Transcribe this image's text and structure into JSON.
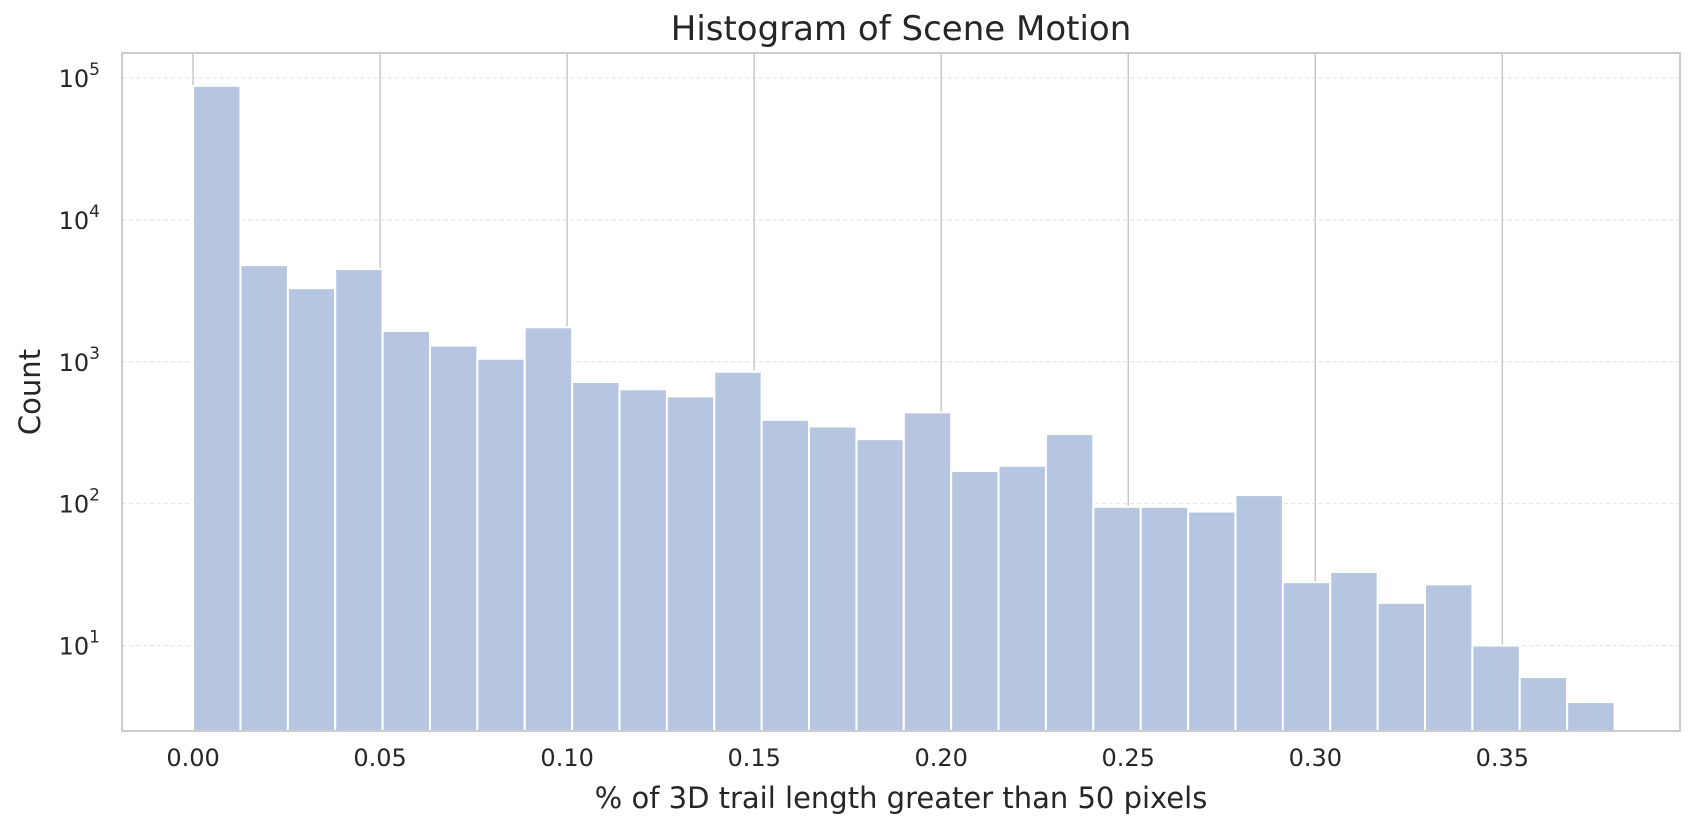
{
  "chart_data": {
    "type": "bar",
    "title": "Histogram of Scene Motion",
    "xlabel": "% of 3D trail length greater than 50 pixels",
    "ylabel": "Count",
    "yscale": "log",
    "xlim": [
      -0.019,
      0.3975
    ],
    "ylim": [
      2.5,
      150000
    ],
    "xticks": [
      0.0,
      0.05,
      0.1,
      0.15,
      0.2,
      0.25,
      0.3,
      0.35
    ],
    "xtick_labels": [
      "0.00",
      "0.05",
      "0.10",
      "0.15",
      "0.20",
      "0.25",
      "0.30",
      "0.35"
    ],
    "yticks": [
      10,
      100,
      1000,
      10000,
      100000
    ],
    "ytick_labels": [
      {
        "base": "10",
        "exp": "1"
      },
      {
        "base": "10",
        "exp": "2"
      },
      {
        "base": "10",
        "exp": "3"
      },
      {
        "base": "10",
        "exp": "4"
      },
      {
        "base": "10",
        "exp": "5"
      }
    ],
    "bin_start": 0.0,
    "bin_end": 0.38,
    "counts": [
      88000,
      4800,
      3300,
      4500,
      1650,
      1300,
      1050,
      1750,
      720,
      640,
      570,
      850,
      390,
      350,
      285,
      440,
      170,
      185,
      310,
      95,
      95,
      88,
      115,
      28,
      33,
      20,
      27,
      10,
      6,
      4
    ],
    "grid": {
      "x": true,
      "y": true
    },
    "colors": {
      "bar": "#b7c6e0",
      "bar_edge": "#ffffff",
      "grid": "#c8c8c8",
      "text": "#262626"
    }
  }
}
